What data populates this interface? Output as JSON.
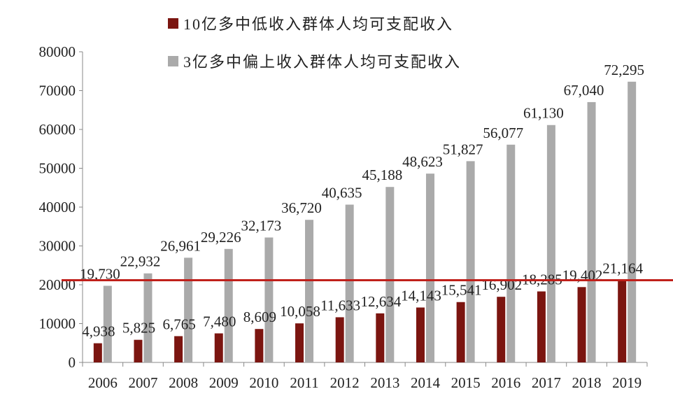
{
  "chart_data": {
    "type": "bar",
    "categories": [
      "2006",
      "2007",
      "2008",
      "2009",
      "2010",
      "2011",
      "2012",
      "2013",
      "2014",
      "2015",
      "2016",
      "2017",
      "2018",
      "2019"
    ],
    "series": [
      {
        "name": "10亿多中低收入群体人均可支配收入",
        "color": "#7b1510",
        "values": [
          4938,
          5825,
          6765,
          7480,
          8609,
          10058,
          11633,
          12634,
          14143,
          15541,
          16902,
          18285,
          19402,
          21164
        ],
        "labels": [
          "4,938",
          "5,825",
          "6,765",
          "7,480",
          "8,609",
          "10,058",
          "11,633",
          "12,634",
          "14,143",
          "15,541",
          "16,902",
          "18,285",
          "19,402",
          "21,164"
        ]
      },
      {
        "name": "3亿多中偏上收入群体人均可支配收入",
        "color": "#aaaaaa",
        "values": [
          19730,
          22932,
          26961,
          29226,
          32173,
          36720,
          40635,
          45188,
          48623,
          51827,
          56077,
          61130,
          67040,
          72295
        ],
        "labels": [
          "19,730",
          "22,932",
          "26,961",
          "29,226",
          "32,173",
          "36,720",
          "40,635",
          "45,188",
          "48,623",
          "51,827",
          "56,077",
          "61,130",
          "67,040",
          "72,295"
        ]
      }
    ],
    "y_ticks": [
      "0",
      "10000",
      "20000",
      "30000",
      "40000",
      "50000",
      "60000",
      "70000",
      "80000"
    ],
    "ylim": [
      0,
      80000
    ],
    "reference_line": {
      "value": 21164,
      "color": "#c0201b"
    },
    "legend_position": "top",
    "grid": false
  }
}
